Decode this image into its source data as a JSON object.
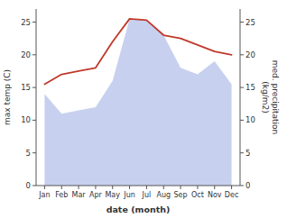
{
  "chart_data": {
    "type": "line",
    "categories": [
      "Jan",
      "Feb",
      "Mar",
      "Apr",
      "May",
      "Jun",
      "Jul",
      "Aug",
      "Sep",
      "Oct",
      "Nov",
      "Dec"
    ],
    "series": [
      {
        "type": "area",
        "color": "#c8d0f0",
        "axis": "y2",
        "values": [
          14.0,
          11.0,
          11.5,
          12.0,
          16.0,
          25.5,
          25.3,
          23.0,
          18.0,
          17.0,
          19.0,
          15.5
        ]
      },
      {
        "type": "line",
        "color": "#c0392b",
        "values": [
          15.5,
          17.0,
          17.5,
          18.0,
          22.0,
          25.5,
          25.3,
          23.0,
          22.5,
          21.5,
          20.5,
          20.0
        ]
      }
    ],
    "xlabel": "date (month)",
    "ylabel": "max temp (C)",
    "y2label": "med. precipitation\n(kg/m2)",
    "ylim": [
      0,
      27
    ],
    "yticks": [
      0,
      5,
      10,
      15,
      20,
      25
    ],
    "y2lim": [
      0,
      27
    ],
    "y2ticks": [
      0,
      5,
      10,
      15,
      20,
      25
    ]
  }
}
